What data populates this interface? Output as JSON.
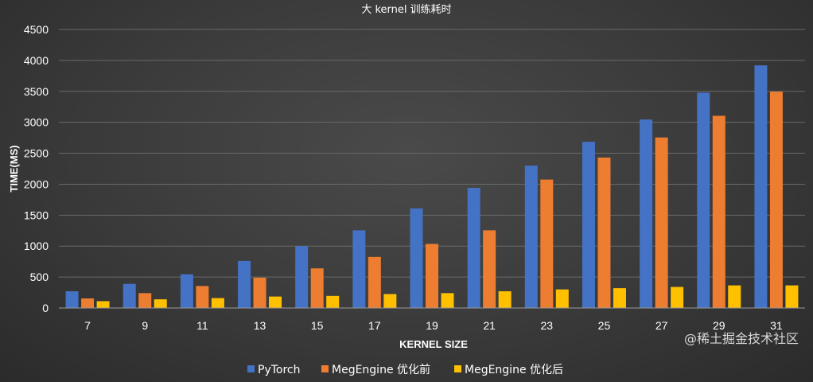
{
  "chart_data": {
    "type": "bar",
    "title": "大 kernel 训练耗时",
    "xlabel": "KERNEL SIZE",
    "ylabel": "TIME(MS)",
    "ylim": [
      0,
      4500
    ],
    "yticks": [
      0,
      500,
      1000,
      1500,
      2000,
      2500,
      3000,
      3500,
      4000,
      4500
    ],
    "grid": true,
    "legend_position": "bottom",
    "categories": [
      "7",
      "9",
      "11",
      "13",
      "15",
      "17",
      "19",
      "21",
      "23",
      "25",
      "27",
      "29",
      "31"
    ],
    "series": [
      {
        "name": "PyTorch",
        "color": "#4472c4",
        "values": [
          270,
          390,
          545,
          760,
          1000,
          1255,
          1610,
          1940,
          2300,
          2685,
          3045,
          3480,
          3920
        ]
      },
      {
        "name": "MegEngine 优化前",
        "color": "#ed7d31",
        "values": [
          155,
          240,
          355,
          490,
          640,
          825,
          1035,
          1255,
          2075,
          2430,
          2755,
          3105,
          3495
        ]
      },
      {
        "name": "MegEngine 优化后",
        "color": "#ffc000",
        "values": [
          110,
          140,
          160,
          185,
          195,
          225,
          240,
          270,
          300,
          320,
          340,
          365,
          365
        ]
      }
    ]
  },
  "watermark": "@稀土掘金技术社区"
}
